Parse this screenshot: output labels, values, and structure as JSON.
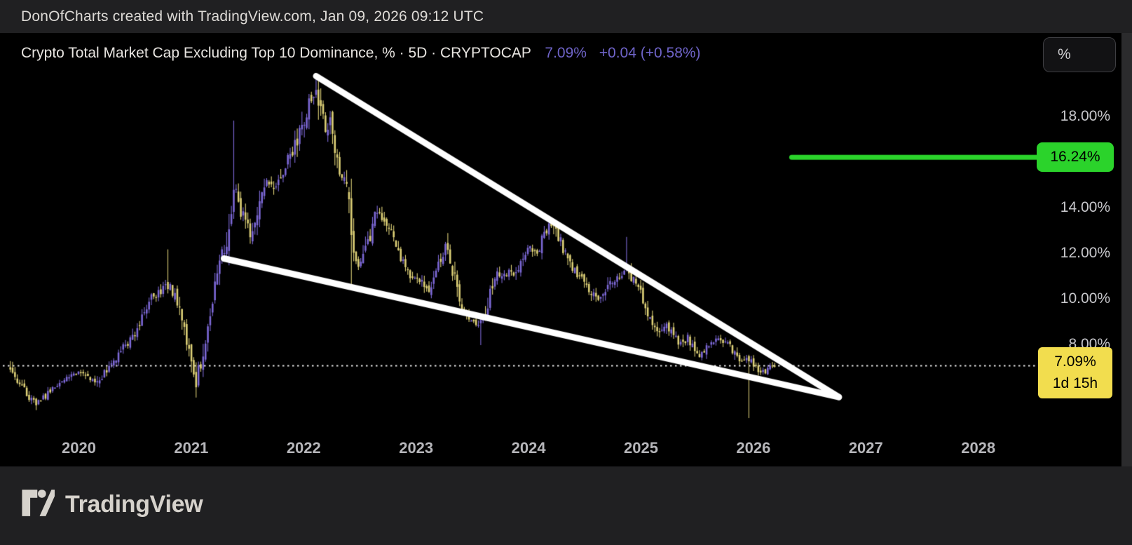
{
  "attribution_bar": {
    "text": "DonOfCharts created with TradingView.com, Jan 09, 2026 09:12 UTC"
  },
  "legend": {
    "title": "Crypto Total Market Cap Excluding Top 10 Dominance, % · 5D · CRYPTOCAP",
    "value": "7.09%",
    "change": "+0.04 (+0.58%)"
  },
  "axis": {
    "unit_button": "%",
    "y_ticks": [
      {
        "label": "18.00%",
        "value": 18.0
      },
      {
        "label": "14.00%",
        "value": 14.0
      },
      {
        "label": "12.00%",
        "value": 12.0
      },
      {
        "label": "10.00%",
        "value": 10.0
      },
      {
        "label": "8.00%",
        "value": 8.0
      }
    ],
    "x_ticks": [
      {
        "label": "2020",
        "year": 2020
      },
      {
        "label": "2021",
        "year": 2021
      },
      {
        "label": "2022",
        "year": 2022
      },
      {
        "label": "2023",
        "year": 2023
      },
      {
        "label": "2024",
        "year": 2024
      },
      {
        "label": "2025",
        "year": 2025
      },
      {
        "label": "2026",
        "year": 2026
      },
      {
        "label": "2027",
        "year": 2027
      },
      {
        "label": "2028",
        "year": 2028
      }
    ]
  },
  "price_labels": {
    "alert": {
      "text": "16.24%",
      "value": 16.24,
      "color": "#2bd32b"
    },
    "current": {
      "price": "7.09%",
      "countdown": "1d 15h",
      "value": 7.09,
      "color": "#f2dd4e"
    }
  },
  "footer": {
    "logo_text": "TradingView"
  },
  "colors": {
    "up_candle": "#7c68d6",
    "down_candle": "#ddd077",
    "trendline": "#ffffff",
    "alert_line": "#2bd32b",
    "current_line": "#e8e8e8",
    "accent_text": "#6f64c9"
  },
  "chart_data": {
    "type": "candlestick",
    "title": "Crypto Total Market Cap Excluding Top 10 Dominance, % · 5D · CRYPTOCAP",
    "symbol": "CRYPTOCAP",
    "timeframe": "5D",
    "unit": "%",
    "last_value": 7.09,
    "change_abs": 0.04,
    "change_pct": 0.58,
    "x_visible_range": [
      2019.39,
      2028.6
    ],
    "y_visible_range": [
      3.0,
      21.5
    ],
    "grid": false,
    "price_path": [
      [
        2019.39,
        7.0
      ],
      [
        2019.44,
        6.5
      ],
      [
        2019.5,
        6.1
      ],
      [
        2019.56,
        5.7
      ],
      [
        2019.63,
        5.4
      ],
      [
        2019.69,
        5.7
      ],
      [
        2019.77,
        6.1
      ],
      [
        2019.85,
        6.4
      ],
      [
        2019.93,
        6.6
      ],
      [
        2020.0,
        6.9
      ],
      [
        2020.07,
        6.6
      ],
      [
        2020.16,
        6.3
      ],
      [
        2020.24,
        6.9
      ],
      [
        2020.32,
        7.3
      ],
      [
        2020.4,
        7.9
      ],
      [
        2020.49,
        8.4
      ],
      [
        2020.58,
        9.4
      ],
      [
        2020.66,
        10.2
      ],
      [
        2020.74,
        10.4
      ],
      [
        2020.8,
        10.6
      ],
      [
        2020.86,
        10.1
      ],
      [
        2020.92,
        8.9
      ],
      [
        2020.99,
        7.6
      ],
      [
        2021.04,
        6.3
      ],
      [
        2021.1,
        7.6
      ],
      [
        2021.15,
        9.2
      ],
      [
        2021.22,
        10.8
      ],
      [
        2021.27,
        11.9
      ],
      [
        2021.32,
        12.8
      ],
      [
        2021.38,
        14.8
      ],
      [
        2021.42,
        14.2
      ],
      [
        2021.47,
        13.6
      ],
      [
        2021.52,
        12.8
      ],
      [
        2021.57,
        13.6
      ],
      [
        2021.62,
        14.7
      ],
      [
        2021.68,
        15.2
      ],
      [
        2021.73,
        14.7
      ],
      [
        2021.78,
        15.1
      ],
      [
        2021.83,
        15.9
      ],
      [
        2021.88,
        16.4
      ],
      [
        2021.93,
        16.8
      ],
      [
        2021.98,
        17.5
      ],
      [
        2022.03,
        18.4
      ],
      [
        2022.08,
        19.0
      ],
      [
        2022.12,
        18.8
      ],
      [
        2022.16,
        18.0
      ],
      [
        2022.2,
        17.3
      ],
      [
        2022.24,
        17.6
      ],
      [
        2022.28,
        16.4
      ],
      [
        2022.33,
        15.6
      ],
      [
        2022.38,
        15.2
      ],
      [
        2022.43,
        12.9
      ],
      [
        2022.47,
        11.4
      ],
      [
        2022.52,
        11.8
      ],
      [
        2022.56,
        12.3
      ],
      [
        2022.61,
        13.3
      ],
      [
        2022.67,
        14.0
      ],
      [
        2022.72,
        13.5
      ],
      [
        2022.77,
        13.0
      ],
      [
        2022.82,
        12.4
      ],
      [
        2022.87,
        11.8
      ],
      [
        2022.93,
        11.2
      ],
      [
        2022.99,
        10.9
      ],
      [
        2023.05,
        10.8
      ],
      [
        2023.11,
        10.4
      ],
      [
        2023.15,
        10.9
      ],
      [
        2023.19,
        11.6
      ],
      [
        2023.23,
        12.0
      ],
      [
        2023.27,
        12.3
      ],
      [
        2023.3,
        11.9
      ],
      [
        2023.34,
        10.9
      ],
      [
        2023.38,
        10.0
      ],
      [
        2023.43,
        9.5
      ],
      [
        2023.47,
        9.1
      ],
      [
        2023.52,
        8.9
      ],
      [
        2023.57,
        9.0
      ],
      [
        2023.62,
        9.4
      ],
      [
        2023.66,
        10.3
      ],
      [
        2023.7,
        11.0
      ],
      [
        2023.74,
        11.2
      ],
      [
        2023.79,
        11.0
      ],
      [
        2023.83,
        11.2
      ],
      [
        2023.88,
        11.1
      ],
      [
        2023.93,
        11.6
      ],
      [
        2023.98,
        12.0
      ],
      [
        2024.03,
        12.3
      ],
      [
        2024.08,
        12.2
      ],
      [
        2024.13,
        12.8
      ],
      [
        2024.17,
        13.1
      ],
      [
        2024.22,
        13.3
      ],
      [
        2024.28,
        12.6
      ],
      [
        2024.33,
        12.0
      ],
      [
        2024.38,
        11.5
      ],
      [
        2024.44,
        11.0
      ],
      [
        2024.49,
        10.7
      ],
      [
        2024.54,
        10.4
      ],
      [
        2024.58,
        10.2
      ],
      [
        2024.63,
        10.0
      ],
      [
        2024.68,
        10.3
      ],
      [
        2024.73,
        10.8
      ],
      [
        2024.78,
        11.0
      ],
      [
        2024.83,
        11.2
      ],
      [
        2024.88,
        11.3
      ],
      [
        2024.94,
        10.7
      ],
      [
        2025.0,
        10.2
      ],
      [
        2025.05,
        9.6
      ],
      [
        2025.11,
        9.0
      ],
      [
        2025.16,
        8.6
      ],
      [
        2025.21,
        8.9
      ],
      [
        2025.26,
        8.6
      ],
      [
        2025.31,
        8.3
      ],
      [
        2025.36,
        8.0
      ],
      [
        2025.41,
        8.3
      ],
      [
        2025.46,
        7.9
      ],
      [
        2025.51,
        7.5
      ],
      [
        2025.56,
        7.7
      ],
      [
        2025.61,
        8.0
      ],
      [
        2025.66,
        8.2
      ],
      [
        2025.71,
        8.35
      ],
      [
        2025.76,
        8.1
      ],
      [
        2025.81,
        7.8
      ],
      [
        2025.86,
        7.5
      ],
      [
        2025.9,
        7.2
      ],
      [
        2025.95,
        7.4
      ],
      [
        2026.0,
        7.2
      ],
      [
        2026.05,
        6.9
      ],
      [
        2026.1,
        6.8
      ],
      [
        2026.15,
        7.0
      ],
      [
        2026.19,
        7.09
      ]
    ],
    "wick_extremes": [
      {
        "t": 2019.63,
        "low": 5.15
      },
      {
        "t": 2020.8,
        "high": 12.2
      },
      {
        "t": 2021.04,
        "low": 5.7
      },
      {
        "t": 2021.38,
        "high": 17.85
      },
      {
        "t": 2022.1,
        "high": 19.75
      },
      {
        "t": 2022.43,
        "high": 15.3,
        "low": 10.55
      },
      {
        "t": 2023.57,
        "low": 8.0
      },
      {
        "t": 2024.88,
        "high": 12.75
      },
      {
        "t": 2025.95,
        "low": 4.8
      }
    ],
    "drawings": {
      "wedge_upper_trendline": {
        "from": [
          2022.11,
          19.8
        ],
        "to": [
          2026.76,
          5.72
        ]
      },
      "wedge_lower_trendline": {
        "from": [
          2021.29,
          11.8
        ],
        "to": [
          2026.76,
          5.72
        ]
      },
      "alert_horizontal_line": {
        "value": 16.24,
        "from_t": 2026.34,
        "to_t": 2028.55
      },
      "current_price_dotted_line": {
        "value": 7.09
      }
    },
    "legend_position": "top-left"
  }
}
